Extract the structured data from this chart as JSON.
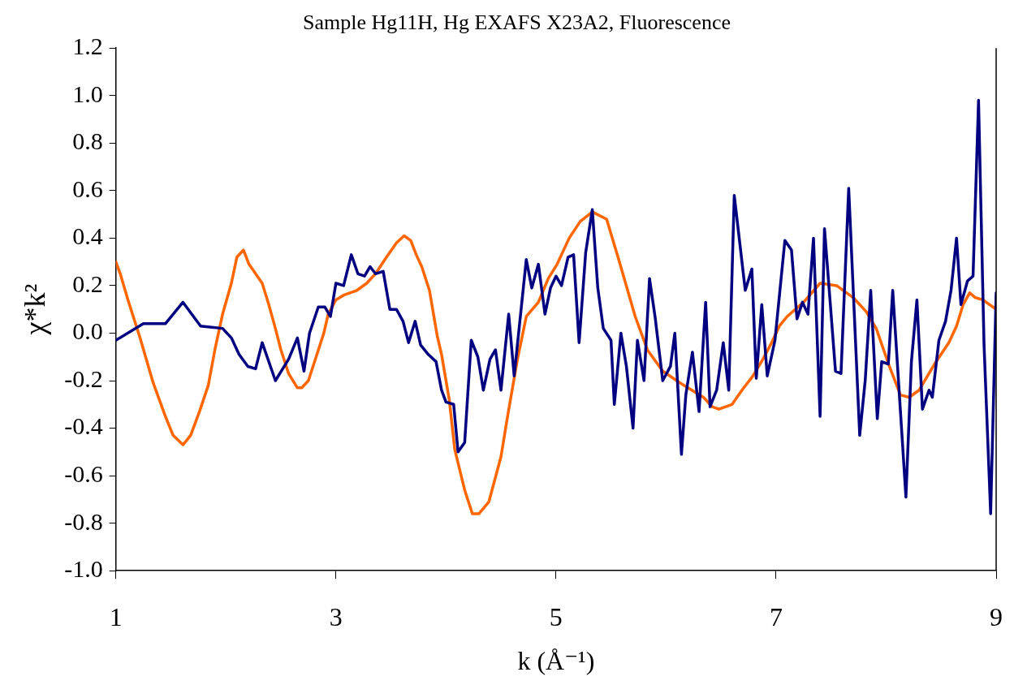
{
  "chart_data": {
    "type": "line",
    "title": "Sample Hg11H, Hg EXAFS X23A2, Fluorescence",
    "xlabel": "k (Å⁻¹)",
    "ylabel": "χ*k²",
    "xlim": [
      1,
      9
    ],
    "xticks": [
      1,
      3,
      5,
      7,
      9
    ],
    "ylim": [
      -1.0,
      1.2
    ],
    "yticks": [
      {
        "value": -1.0,
        "label": "-1.0"
      },
      {
        "value": -0.8,
        "label": "-0.8"
      },
      {
        "value": -0.6,
        "label": "-0.6"
      },
      {
        "value": -0.4,
        "label": "-0.4"
      },
      {
        "value": -0.2,
        "label": "-0.2"
      },
      {
        "value": 0,
        "label": "0.0"
      },
      {
        "value": 0.2,
        "label": "0.2"
      },
      {
        "value": 0.4,
        "label": "0.4"
      },
      {
        "value": 0.6,
        "label": "0.6"
      },
      {
        "value": 0.8,
        "label": "0.8"
      },
      {
        "value": 1.0,
        "label": "1.0"
      },
      {
        "value": 1.2,
        "label": "1.2"
      }
    ],
    "grid": false,
    "legend": false,
    "marker": "none",
    "line_style": "solid",
    "series": [
      {
        "color": "#000080",
        "x": [
          1.0,
          1.25,
          1.45,
          1.61,
          1.77,
          1.97,
          2.05,
          2.12,
          2.2,
          2.27,
          2.33,
          2.45,
          2.57,
          2.65,
          2.71,
          2.76,
          2.84,
          2.9,
          2.95,
          3.0,
          3.07,
          3.14,
          3.2,
          3.26,
          3.31,
          3.36,
          3.43,
          3.49,
          3.55,
          3.61,
          3.66,
          3.72,
          3.77,
          3.84,
          3.91,
          3.96,
          4.0,
          4.07,
          4.11,
          4.17,
          4.23,
          4.29,
          4.34,
          4.4,
          4.45,
          4.5,
          4.57,
          4.62,
          4.73,
          4.78,
          4.84,
          4.9,
          4.95,
          5.0,
          5.05,
          5.11,
          5.16,
          5.21,
          5.27,
          5.33,
          5.38,
          5.43,
          5.5,
          5.53,
          5.59,
          5.64,
          5.7,
          5.74,
          5.8,
          5.85,
          5.9,
          5.97,
          6.04,
          6.08,
          6.14,
          6.18,
          6.24,
          6.3,
          6.36,
          6.4,
          6.46,
          6.52,
          6.57,
          6.62,
          6.72,
          6.78,
          6.82,
          6.87,
          6.92,
          6.99,
          7.08,
          7.14,
          7.19,
          7.24,
          7.29,
          7.34,
          7.4,
          7.44,
          7.54,
          7.59,
          7.66,
          7.76,
          7.81,
          7.86,
          7.92,
          7.96,
          8.02,
          8.06,
          8.18,
          8.23,
          8.28,
          8.33,
          8.39,
          8.42,
          8.48,
          8.54,
          8.59,
          8.64,
          8.68,
          8.74,
          8.79,
          8.84,
          8.89,
          8.95,
          9.0
        ],
        "values": [
          -0.03,
          0.04,
          0.04,
          0.13,
          0.03,
          0.02,
          -0.02,
          -0.09,
          -0.14,
          -0.15,
          -0.04,
          -0.2,
          -0.11,
          -0.02,
          -0.16,
          0.0,
          0.11,
          0.11,
          0.07,
          0.21,
          0.2,
          0.33,
          0.25,
          0.24,
          0.28,
          0.25,
          0.26,
          0.1,
          0.1,
          0.05,
          -0.04,
          0.05,
          -0.05,
          -0.09,
          -0.12,
          -0.24,
          -0.29,
          -0.3,
          -0.5,
          -0.46,
          -0.03,
          -0.1,
          -0.24,
          -0.11,
          -0.07,
          -0.24,
          0.08,
          -0.18,
          0.31,
          0.19,
          0.29,
          0.08,
          0.19,
          0.24,
          0.2,
          0.32,
          0.33,
          -0.04,
          0.34,
          0.52,
          0.19,
          0.02,
          -0.03,
          -0.3,
          0.0,
          -0.14,
          -0.4,
          -0.03,
          -0.2,
          0.23,
          0.07,
          -0.2,
          -0.14,
          0.0,
          -0.51,
          -0.26,
          -0.08,
          -0.33,
          0.13,
          -0.31,
          -0.24,
          -0.04,
          -0.24,
          0.58,
          0.18,
          0.27,
          -0.19,
          0.12,
          -0.18,
          -0.03,
          0.39,
          0.35,
          0.06,
          0.13,
          0.08,
          0.4,
          -0.35,
          0.44,
          -0.16,
          -0.17,
          0.61,
          -0.43,
          -0.2,
          0.18,
          -0.36,
          -0.12,
          -0.13,
          0.18,
          -0.69,
          -0.12,
          0.14,
          -0.32,
          -0.24,
          -0.27,
          -0.03,
          0.05,
          0.18,
          0.4,
          0.12,
          0.22,
          0.24,
          0.98,
          -0.05,
          -0.76,
          0.17
        ]
      },
      {
        "color": "#ff6600",
        "x": [
          1.0,
          1.04,
          1.11,
          1.22,
          1.34,
          1.45,
          1.52,
          1.61,
          1.68,
          1.76,
          1.84,
          1.9,
          1.97,
          2.05,
          2.1,
          2.16,
          2.21,
          2.33,
          2.39,
          2.45,
          2.5,
          2.57,
          2.65,
          2.69,
          2.75,
          2.82,
          2.89,
          2.93,
          3.0,
          3.07,
          3.19,
          3.28,
          3.36,
          3.46,
          3.55,
          3.62,
          3.68,
          3.73,
          3.78,
          3.85,
          3.92,
          3.96,
          4.03,
          4.08,
          4.17,
          4.24,
          4.3,
          4.39,
          4.5,
          4.56,
          4.65,
          4.73,
          4.84,
          4.93,
          5.01,
          5.12,
          5.22,
          5.33,
          5.46,
          5.57,
          5.72,
          5.83,
          5.97,
          6.13,
          6.34,
          6.42,
          6.48,
          6.6,
          6.69,
          6.79,
          6.88,
          6.96,
          7.03,
          7.1,
          7.25,
          7.4,
          7.55,
          7.7,
          7.82,
          7.91,
          8.03,
          8.13,
          8.21,
          8.3,
          8.44,
          8.57,
          8.64,
          8.7,
          8.76,
          8.81,
          8.88,
          9.0
        ],
        "values": [
          0.3,
          0.25,
          0.14,
          -0.02,
          -0.21,
          -0.35,
          -0.43,
          -0.47,
          -0.43,
          -0.33,
          -0.22,
          -0.07,
          0.08,
          0.21,
          0.32,
          0.35,
          0.29,
          0.21,
          0.12,
          0.02,
          -0.07,
          -0.17,
          -0.23,
          -0.23,
          -0.2,
          -0.1,
          0.0,
          0.08,
          0.14,
          0.16,
          0.18,
          0.21,
          0.25,
          0.32,
          0.38,
          0.41,
          0.39,
          0.33,
          0.28,
          0.18,
          -0.01,
          -0.09,
          -0.28,
          -0.49,
          -0.66,
          -0.76,
          -0.76,
          -0.71,
          -0.52,
          -0.35,
          -0.11,
          0.07,
          0.13,
          0.23,
          0.29,
          0.4,
          0.47,
          0.51,
          0.48,
          0.31,
          0.07,
          -0.07,
          -0.16,
          -0.21,
          -0.27,
          -0.31,
          -0.32,
          -0.3,
          -0.24,
          -0.18,
          -0.11,
          -0.04,
          0.03,
          0.07,
          0.13,
          0.21,
          0.2,
          0.15,
          0.09,
          0.02,
          -0.14,
          -0.26,
          -0.27,
          -0.24,
          -0.13,
          -0.04,
          0.03,
          0.12,
          0.17,
          0.15,
          0.14,
          0.1
        ]
      }
    ]
  }
}
